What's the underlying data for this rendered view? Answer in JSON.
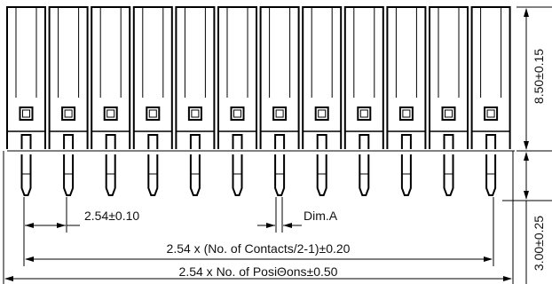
{
  "drawing": {
    "pin_count": 12,
    "dimensions": {
      "pitch": "2.54±0.10",
      "dim_a": "Dim.A",
      "contacts_span": "2.54 x (No. of Contacts/2-1)±0.20",
      "overall_length": "2.54 x No. of PosiΘons±0.50",
      "body_height": "8.50±0.15",
      "pin_length": "3.00±0.25"
    },
    "colors": {
      "line": "#000000",
      "background": "#ffffff"
    }
  }
}
